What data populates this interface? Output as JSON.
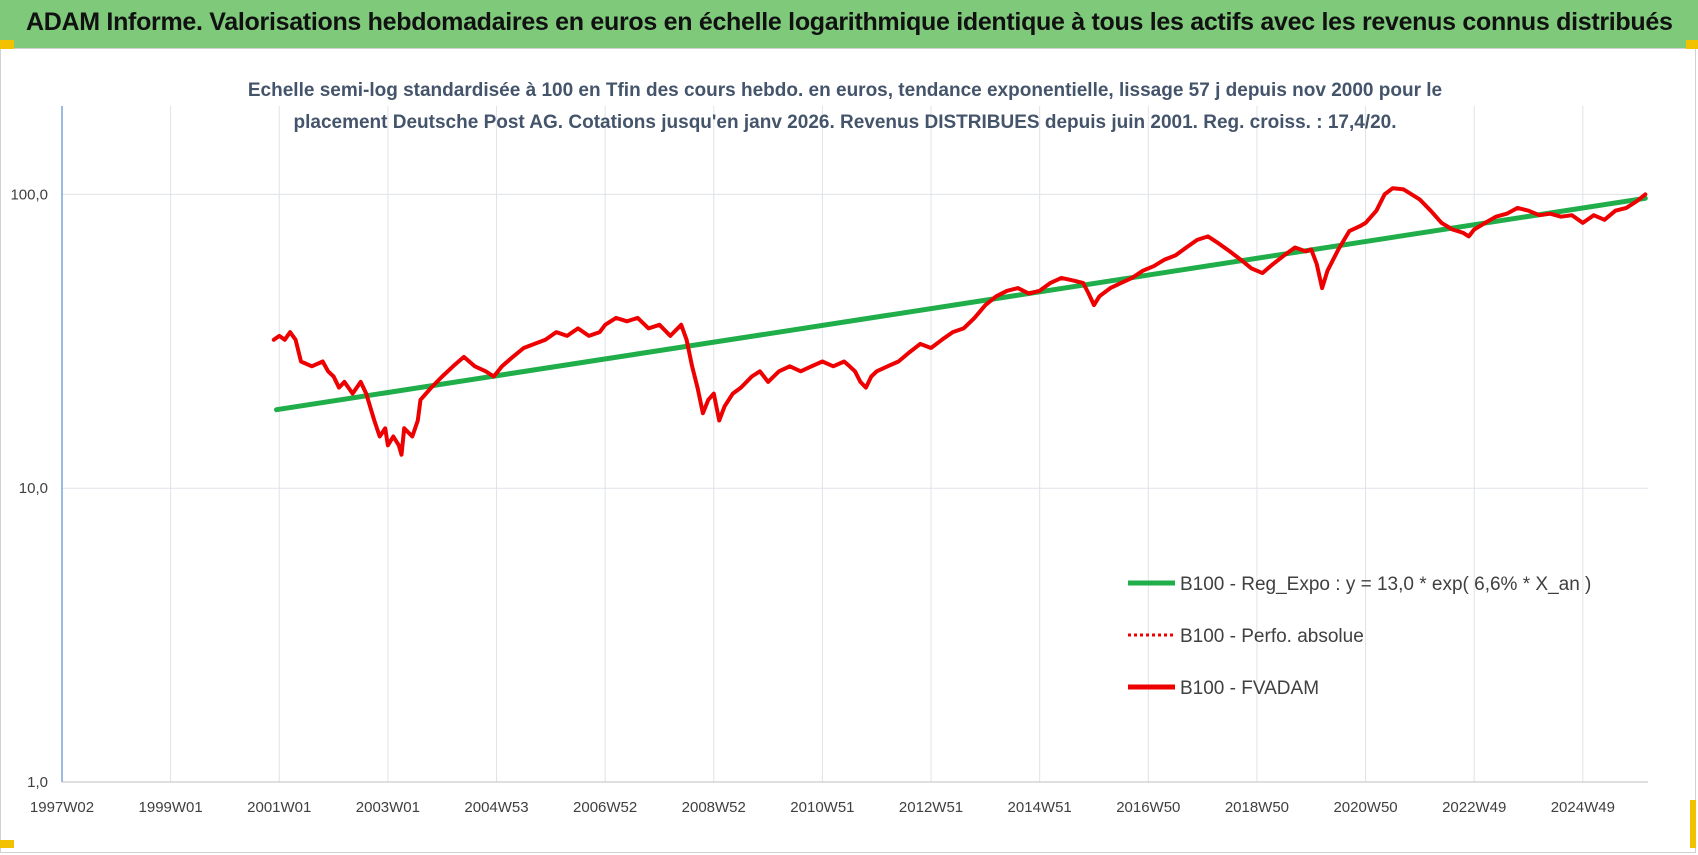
{
  "banner": {
    "title": "ADAM Informe. Valorisations hebdomadaires en euros en échelle logarithmique identique à tous les actifs avec les revenus connus distribués"
  },
  "colors": {
    "banner_bg": "#7ec97a",
    "trend": "#1fae4a",
    "perf": "#ee0000",
    "fvadam": "#ee0000",
    "axis_text": "#404040",
    "grid": "#dfe3e8",
    "corner": "#f2c200"
  },
  "chart_data": {
    "type": "line",
    "title_lines": [
      "Echelle semi-log standardisée à 100 en Tfin des cours hebdo. en euros, tendance exponentielle, lissage 57 j depuis nov 2000 pour le",
      "placement Deutsche Post AG. Cotations jusqu'en janv 2026. Revenus DISTRIBUES depuis juin 2001. Reg. croiss. : 17,4/20."
    ],
    "y_scale": "log",
    "ylim": [
      1,
      200
    ],
    "y_ticks": [
      1,
      10,
      100
    ],
    "y_tick_labels": [
      "1,0",
      "10,0",
      "100,0"
    ],
    "xlim": [
      1997.0,
      2026.2
    ],
    "x_ticks": [
      1997.0,
      1999.0,
      2001.0,
      2003.0,
      2005.0,
      2007.0,
      2009.0,
      2011.0,
      2013.0,
      2015.0,
      2017.0,
      2019.0,
      2021.0,
      2023.0,
      2025.0
    ],
    "x_tick_labels": [
      "1997W02",
      "1999W01",
      "2001W01",
      "2003W01",
      "2004W53",
      "2006W52",
      "2008W52",
      "2010W51",
      "2012W51",
      "2014W51",
      "2016W50",
      "2018W50",
      "2020W50",
      "2022W49",
      "2024W49"
    ],
    "grid": true,
    "legend_position": "bottom-right",
    "series": [
      {
        "name": "B100 - Reg_Expo : y = 13,0 * exp( 6,6% *  X_an )",
        "style": "solid-green",
        "points": [
          [
            2000.95,
            18.5
          ],
          [
            2026.15,
            97
          ]
        ]
      },
      {
        "name": "B100 - Perfo. absolue",
        "style": "dotted-red",
        "points": []
      },
      {
        "name": "B100 - FVADAM",
        "style": "solid-red",
        "points": [
          [
            2000.9,
            32
          ],
          [
            2001.0,
            33
          ],
          [
            2001.1,
            32
          ],
          [
            2001.2,
            34
          ],
          [
            2001.3,
            32
          ],
          [
            2001.4,
            27
          ],
          [
            2001.6,
            26
          ],
          [
            2001.8,
            27
          ],
          [
            2001.9,
            25
          ],
          [
            2002.0,
            24
          ],
          [
            2002.1,
            22
          ],
          [
            2002.2,
            23
          ],
          [
            2002.35,
            21
          ],
          [
            2002.5,
            23
          ],
          [
            2002.6,
            21
          ],
          [
            2002.75,
            17
          ],
          [
            2002.85,
            15
          ],
          [
            2002.95,
            16
          ],
          [
            2003.0,
            14
          ],
          [
            2003.1,
            15
          ],
          [
            2003.2,
            14
          ],
          [
            2003.25,
            13
          ],
          [
            2003.3,
            16
          ],
          [
            2003.45,
            15
          ],
          [
            2003.55,
            17
          ],
          [
            2003.6,
            20
          ],
          [
            2003.8,
            22
          ],
          [
            2004.0,
            24
          ],
          [
            2004.2,
            26
          ],
          [
            2004.4,
            28
          ],
          [
            2004.6,
            26
          ],
          [
            2004.8,
            25
          ],
          [
            2004.95,
            24
          ],
          [
            2005.1,
            26
          ],
          [
            2005.3,
            28
          ],
          [
            2005.5,
            30
          ],
          [
            2005.7,
            31
          ],
          [
            2005.9,
            32
          ],
          [
            2006.1,
            34
          ],
          [
            2006.3,
            33
          ],
          [
            2006.5,
            35
          ],
          [
            2006.7,
            33
          ],
          [
            2006.9,
            34
          ],
          [
            2007.0,
            36
          ],
          [
            2007.2,
            38
          ],
          [
            2007.4,
            37
          ],
          [
            2007.6,
            38
          ],
          [
            2007.8,
            35
          ],
          [
            2008.0,
            36
          ],
          [
            2008.2,
            33
          ],
          [
            2008.4,
            36
          ],
          [
            2008.5,
            32
          ],
          [
            2008.6,
            26
          ],
          [
            2008.7,
            22
          ],
          [
            2008.8,
            18
          ],
          [
            2008.9,
            20
          ],
          [
            2009.0,
            21
          ],
          [
            2009.1,
            17
          ],
          [
            2009.2,
            19
          ],
          [
            2009.35,
            21
          ],
          [
            2009.5,
            22
          ],
          [
            2009.7,
            24
          ],
          [
            2009.85,
            25
          ],
          [
            2010.0,
            23
          ],
          [
            2010.2,
            25
          ],
          [
            2010.4,
            26
          ],
          [
            2010.6,
            25
          ],
          [
            2010.8,
            26
          ],
          [
            2011.0,
            27
          ],
          [
            2011.2,
            26
          ],
          [
            2011.4,
            27
          ],
          [
            2011.5,
            26
          ],
          [
            2011.6,
            25
          ],
          [
            2011.7,
            23
          ],
          [
            2011.8,
            22
          ],
          [
            2011.9,
            24
          ],
          [
            2012.0,
            25
          ],
          [
            2012.2,
            26
          ],
          [
            2012.4,
            27
          ],
          [
            2012.6,
            29
          ],
          [
            2012.8,
            31
          ],
          [
            2013.0,
            30
          ],
          [
            2013.2,
            32
          ],
          [
            2013.4,
            34
          ],
          [
            2013.6,
            35
          ],
          [
            2013.8,
            38
          ],
          [
            2014.0,
            42
          ],
          [
            2014.2,
            45
          ],
          [
            2014.4,
            47
          ],
          [
            2014.6,
            48
          ],
          [
            2014.8,
            46
          ],
          [
            2015.0,
            47
          ],
          [
            2015.2,
            50
          ],
          [
            2015.4,
            52
          ],
          [
            2015.6,
            51
          ],
          [
            2015.8,
            50
          ],
          [
            2015.9,
            46
          ],
          [
            2016.0,
            42
          ],
          [
            2016.1,
            45
          ],
          [
            2016.3,
            48
          ],
          [
            2016.5,
            50
          ],
          [
            2016.7,
            52
          ],
          [
            2016.9,
            55
          ],
          [
            2017.1,
            57
          ],
          [
            2017.3,
            60
          ],
          [
            2017.5,
            62
          ],
          [
            2017.7,
            66
          ],
          [
            2017.9,
            70
          ],
          [
            2018.1,
            72
          ],
          [
            2018.3,
            68
          ],
          [
            2018.5,
            64
          ],
          [
            2018.7,
            60
          ],
          [
            2018.9,
            56
          ],
          [
            2019.1,
            54
          ],
          [
            2019.3,
            58
          ],
          [
            2019.5,
            62
          ],
          [
            2019.7,
            66
          ],
          [
            2019.9,
            64
          ],
          [
            2020.0,
            65
          ],
          [
            2020.1,
            58
          ],
          [
            2020.2,
            48
          ],
          [
            2020.3,
            55
          ],
          [
            2020.5,
            65
          ],
          [
            2020.7,
            75
          ],
          [
            2020.9,
            78
          ],
          [
            2021.0,
            80
          ],
          [
            2021.2,
            88
          ],
          [
            2021.35,
            100
          ],
          [
            2021.5,
            105
          ],
          [
            2021.7,
            104
          ],
          [
            2021.85,
            100
          ],
          [
            2022.0,
            96
          ],
          [
            2022.2,
            88
          ],
          [
            2022.4,
            80
          ],
          [
            2022.6,
            76
          ],
          [
            2022.8,
            74
          ],
          [
            2022.9,
            72
          ],
          [
            2023.0,
            76
          ],
          [
            2023.2,
            80
          ],
          [
            2023.4,
            84
          ],
          [
            2023.6,
            86
          ],
          [
            2023.8,
            90
          ],
          [
            2024.0,
            88
          ],
          [
            2024.2,
            85
          ],
          [
            2024.4,
            86
          ],
          [
            2024.6,
            84
          ],
          [
            2024.8,
            85
          ],
          [
            2025.0,
            80
          ],
          [
            2025.2,
            85
          ],
          [
            2025.4,
            82
          ],
          [
            2025.6,
            88
          ],
          [
            2025.8,
            90
          ],
          [
            2026.0,
            95
          ],
          [
            2026.15,
            100
          ]
        ]
      }
    ]
  }
}
